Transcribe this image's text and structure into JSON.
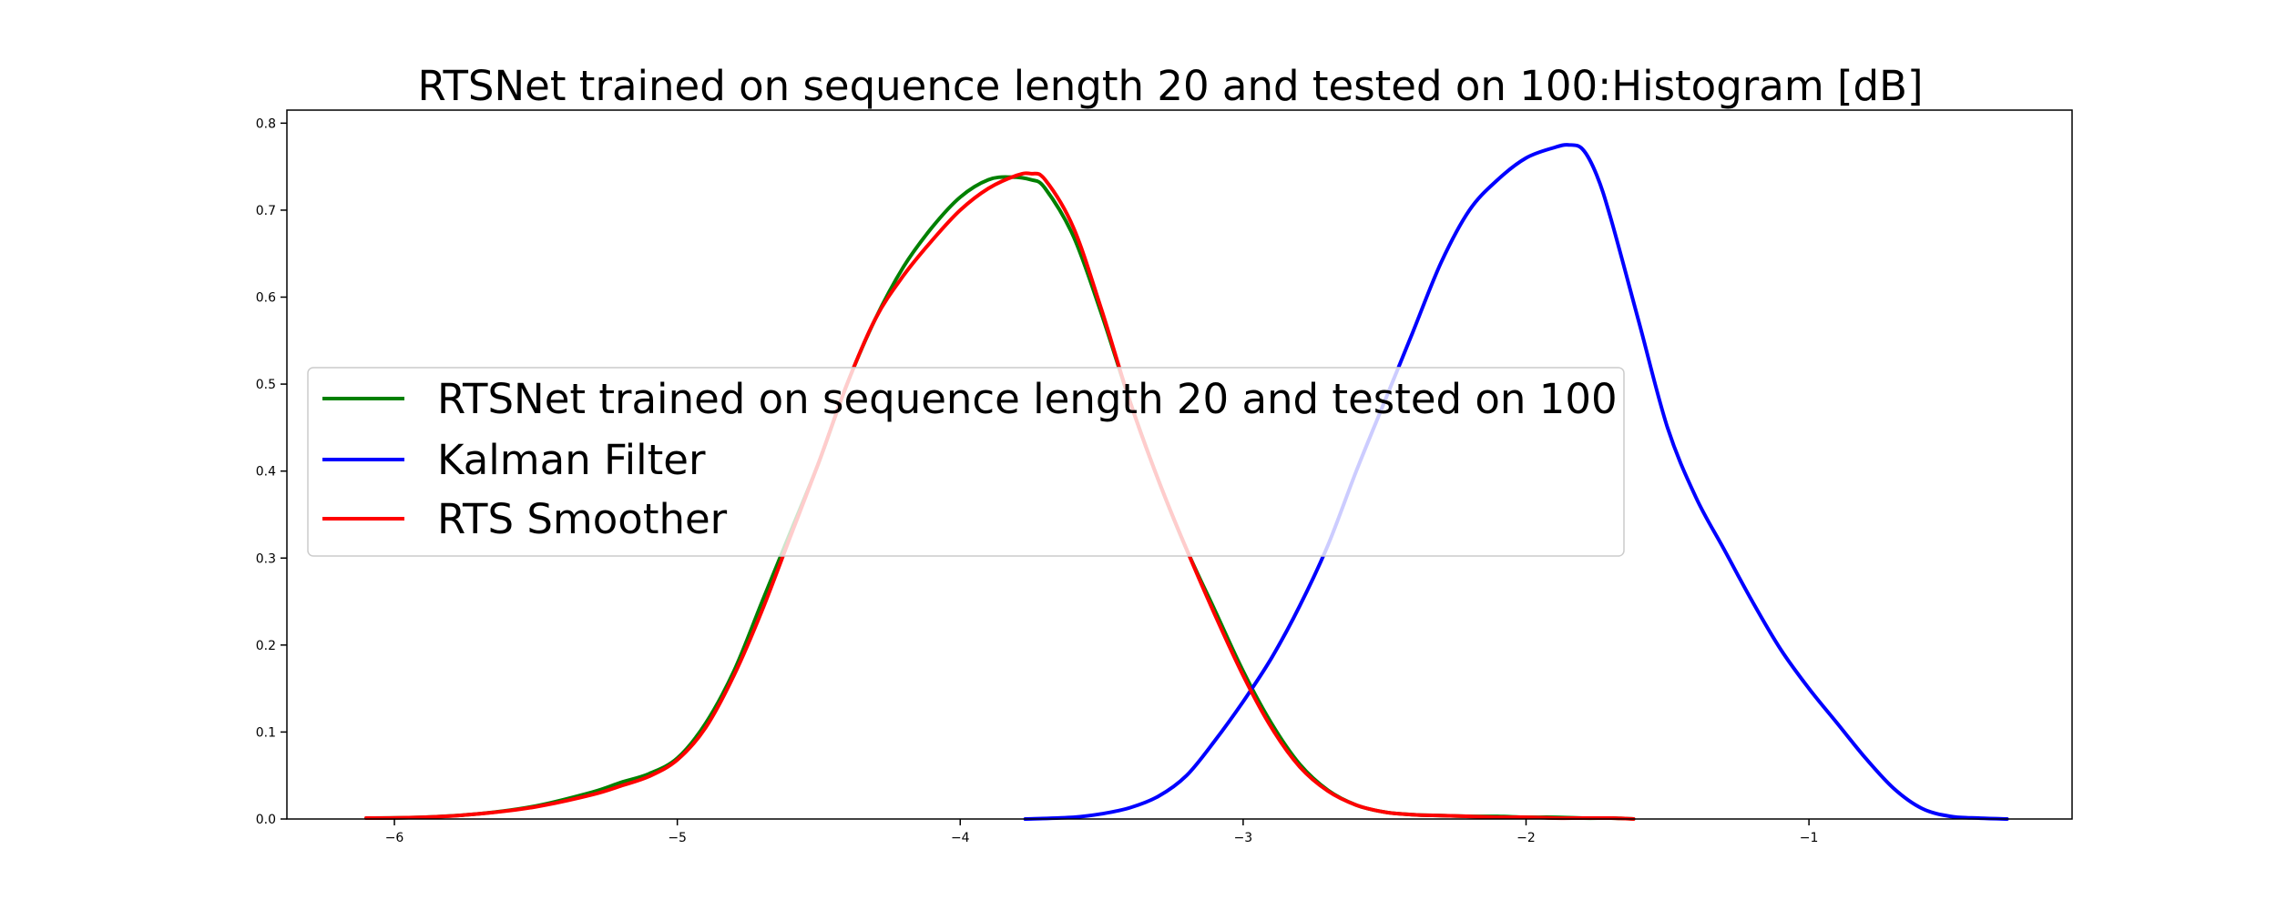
{
  "chart_data": {
    "type": "line",
    "title": "RTSNet trained on sequence length 20 and tested on 100:Histogram [dB]",
    "xlabel": "",
    "ylabel": "",
    "xlim": [
      -6.38,
      -0.07
    ],
    "ylim": [
      0.0,
      0.815
    ],
    "xticks": [
      -6,
      -5,
      -4,
      -3,
      -2,
      -1
    ],
    "xtick_labels": [
      "−6",
      "−5",
      "−4",
      "−3",
      "−2",
      "−1"
    ],
    "yticks": [
      0.0,
      0.1,
      0.2,
      0.3,
      0.4,
      0.5,
      0.6,
      0.7,
      0.8
    ],
    "ytick_labels": [
      "0.0",
      "0.1",
      "0.2",
      "0.3",
      "0.4",
      "0.5",
      "0.6",
      "0.7",
      "0.8"
    ],
    "grid": false,
    "legend_position": "center-left",
    "series": [
      {
        "name": "RTSNet trained on sequence length 20 and tested on 100",
        "color": "#008000",
        "x": [
          -6.1,
          -5.9,
          -5.7,
          -5.5,
          -5.3,
          -5.2,
          -5.1,
          -5.0,
          -4.9,
          -4.8,
          -4.7,
          -4.6,
          -4.5,
          -4.4,
          -4.3,
          -4.2,
          -4.1,
          -4.0,
          -3.9,
          -3.82,
          -3.75,
          -3.7,
          -3.6,
          -3.5,
          -3.4,
          -3.3,
          -3.2,
          -3.1,
          -3.0,
          -2.9,
          -2.8,
          -2.7,
          -2.6,
          -2.5,
          -2.4,
          -2.3,
          -2.2,
          -2.1,
          -2.0,
          -1.9,
          -1.8,
          -1.7,
          -1.62
        ],
        "y": [
          0.001,
          0.002,
          0.006,
          0.015,
          0.031,
          0.042,
          0.052,
          0.07,
          0.11,
          0.17,
          0.25,
          0.33,
          0.41,
          0.5,
          0.575,
          0.635,
          0.68,
          0.715,
          0.735,
          0.738,
          0.735,
          0.725,
          0.67,
          0.58,
          0.48,
          0.39,
          0.31,
          0.24,
          0.17,
          0.11,
          0.063,
          0.033,
          0.016,
          0.008,
          0.005,
          0.004,
          0.003,
          0.003,
          0.002,
          0.002,
          0.001,
          0.001,
          0.0
        ]
      },
      {
        "name": "Kalman Filter",
        "color": "#0000ff",
        "x": [
          -3.77,
          -3.6,
          -3.5,
          -3.4,
          -3.3,
          -3.2,
          -3.1,
          -3.0,
          -2.9,
          -2.8,
          -2.7,
          -2.6,
          -2.5,
          -2.4,
          -2.3,
          -2.2,
          -2.1,
          -2.0,
          -1.9,
          -1.85,
          -1.8,
          -1.75,
          -1.7,
          -1.6,
          -1.5,
          -1.4,
          -1.3,
          -1.2,
          -1.1,
          -1.0,
          -0.9,
          -0.8,
          -0.7,
          -0.6,
          -0.5,
          -0.4,
          -0.3
        ],
        "y": [
          0.0,
          0.002,
          0.006,
          0.013,
          0.026,
          0.05,
          0.09,
          0.135,
          0.185,
          0.245,
          0.315,
          0.4,
          0.48,
          0.56,
          0.64,
          0.7,
          0.735,
          0.76,
          0.772,
          0.775,
          0.77,
          0.74,
          0.69,
          0.57,
          0.45,
          0.37,
          0.31,
          0.25,
          0.195,
          0.15,
          0.11,
          0.07,
          0.035,
          0.012,
          0.003,
          0.001,
          0.0
        ]
      },
      {
        "name": "RTS Smoother",
        "color": "#ff0000",
        "x": [
          -6.1,
          -5.9,
          -5.7,
          -5.5,
          -5.3,
          -5.2,
          -5.1,
          -5.0,
          -4.9,
          -4.8,
          -4.7,
          -4.6,
          -4.5,
          -4.4,
          -4.3,
          -4.2,
          -4.1,
          -4.0,
          -3.9,
          -3.8,
          -3.75,
          -3.7,
          -3.6,
          -3.5,
          -3.4,
          -3.3,
          -3.2,
          -3.1,
          -3.0,
          -2.9,
          -2.8,
          -2.7,
          -2.6,
          -2.5,
          -2.4,
          -2.3,
          -2.2,
          -2.1,
          -2.0,
          -1.9,
          -1.8,
          -1.7,
          -1.62
        ],
        "y": [
          0.001,
          0.002,
          0.006,
          0.014,
          0.028,
          0.038,
          0.049,
          0.068,
          0.105,
          0.165,
          0.24,
          0.325,
          0.41,
          0.5,
          0.575,
          0.625,
          0.665,
          0.7,
          0.725,
          0.74,
          0.742,
          0.735,
          0.68,
          0.585,
          0.48,
          0.39,
          0.31,
          0.235,
          0.165,
          0.105,
          0.06,
          0.032,
          0.016,
          0.008,
          0.005,
          0.004,
          0.003,
          0.002,
          0.002,
          0.001,
          0.001,
          0.001,
          0.0
        ]
      }
    ]
  }
}
